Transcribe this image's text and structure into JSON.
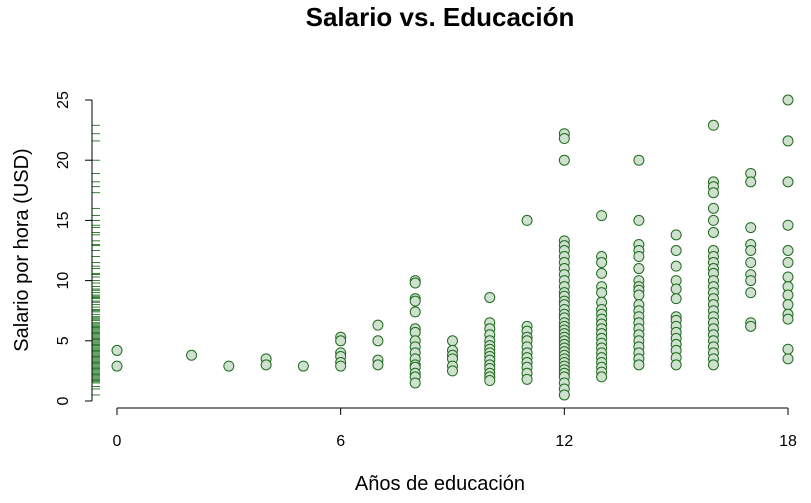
{
  "chart_data": {
    "type": "scatter",
    "title": "Salario vs. Educación",
    "xlabel": "Años de educación",
    "ylabel": "Salario por hora (USD)",
    "xlim": [
      0,
      18
    ],
    "ylim": [
      0,
      25
    ],
    "xticks": [
      0,
      6,
      12,
      18
    ],
    "yticks": [
      0,
      5,
      10,
      15,
      20,
      25
    ],
    "x_tick_labels": [
      "0",
      "6",
      "12",
      "18"
    ],
    "y_tick_labels": [
      "0",
      "5",
      "10",
      "15",
      "20",
      "25"
    ],
    "grid": false,
    "rug": "y-axis",
    "colors": {
      "point_fill": "#cfe0cf",
      "point_stroke": "#1f6b1f",
      "rug": "#006400"
    },
    "points": [
      [
        0,
        4.2
      ],
      [
        0,
        2.9
      ],
      [
        2,
        3.8
      ],
      [
        3,
        2.9
      ],
      [
        4,
        3.5
      ],
      [
        4,
        3.0
      ],
      [
        5,
        2.9
      ],
      [
        6,
        5.3
      ],
      [
        6,
        5.0
      ],
      [
        6,
        4.0
      ],
      [
        6,
        3.7
      ],
      [
        6,
        3.2
      ],
      [
        6,
        2.9
      ],
      [
        7,
        6.3
      ],
      [
        7,
        5.0
      ],
      [
        7,
        3.4
      ],
      [
        7,
        3.0
      ],
      [
        8,
        10.0
      ],
      [
        8,
        9.8
      ],
      [
        8,
        8.5
      ],
      [
        8,
        8.3
      ],
      [
        8,
        7.4
      ],
      [
        8,
        6.0
      ],
      [
        8,
        5.7
      ],
      [
        8,
        5.0
      ],
      [
        8,
        4.5
      ],
      [
        8,
        4.0
      ],
      [
        8,
        3.5
      ],
      [
        8,
        3.0
      ],
      [
        8,
        2.8
      ],
      [
        8,
        2.3
      ],
      [
        8,
        2.0
      ],
      [
        8,
        1.5
      ],
      [
        9,
        5.0
      ],
      [
        9,
        4.2
      ],
      [
        9,
        3.8
      ],
      [
        9,
        3.5
      ],
      [
        9,
        2.9
      ],
      [
        9,
        2.5
      ],
      [
        10,
        8.6
      ],
      [
        10,
        6.5
      ],
      [
        10,
        6.0
      ],
      [
        10,
        5.5
      ],
      [
        10,
        5.0
      ],
      [
        10,
        4.6
      ],
      [
        10,
        4.3
      ],
      [
        10,
        4.0
      ],
      [
        10,
        3.7
      ],
      [
        10,
        3.4
      ],
      [
        10,
        3.0
      ],
      [
        10,
        2.7
      ],
      [
        10,
        2.3
      ],
      [
        10,
        2.0
      ],
      [
        10,
        1.7
      ],
      [
        11,
        15.0
      ],
      [
        11,
        6.2
      ],
      [
        11,
        5.8
      ],
      [
        11,
        5.3
      ],
      [
        11,
        5.0
      ],
      [
        11,
        4.5
      ],
      [
        11,
        4.0
      ],
      [
        11,
        3.6
      ],
      [
        11,
        3.2
      ],
      [
        11,
        2.8
      ],
      [
        11,
        2.3
      ],
      [
        11,
        1.8
      ],
      [
        12,
        22.2
      ],
      [
        12,
        21.8
      ],
      [
        12,
        20.0
      ],
      [
        12,
        13.3
      ],
      [
        12,
        12.9
      ],
      [
        12,
        12.5
      ],
      [
        12,
        12.0
      ],
      [
        12,
        11.5
      ],
      [
        12,
        11.0
      ],
      [
        12,
        10.5
      ],
      [
        12,
        10.0
      ],
      [
        12,
        9.5
      ],
      [
        12,
        9.0
      ],
      [
        12,
        8.7
      ],
      [
        12,
        8.3
      ],
      [
        12,
        8.0
      ],
      [
        12,
        7.6
      ],
      [
        12,
        7.2
      ],
      [
        12,
        6.9
      ],
      [
        12,
        6.5
      ],
      [
        12,
        6.2
      ],
      [
        12,
        5.9
      ],
      [
        12,
        5.6
      ],
      [
        12,
        5.3
      ],
      [
        12,
        5.0
      ],
      [
        12,
        4.7
      ],
      [
        12,
        4.4
      ],
      [
        12,
        4.1
      ],
      [
        12,
        3.8
      ],
      [
        12,
        3.5
      ],
      [
        12,
        3.2
      ],
      [
        12,
        2.9
      ],
      [
        12,
        2.6
      ],
      [
        12,
        2.3
      ],
      [
        12,
        2.0
      ],
      [
        12,
        1.5
      ],
      [
        12,
        1.0
      ],
      [
        12,
        0.5
      ],
      [
        13,
        15.4
      ],
      [
        13,
        12.0
      ],
      [
        13,
        11.5
      ],
      [
        13,
        10.6
      ],
      [
        13,
        9.5
      ],
      [
        13,
        9.0
      ],
      [
        13,
        8.2
      ],
      [
        13,
        7.6
      ],
      [
        13,
        7.2
      ],
      [
        13,
        6.8
      ],
      [
        13,
        6.4
      ],
      [
        13,
        6.0
      ],
      [
        13,
        5.6
      ],
      [
        13,
        5.2
      ],
      [
        13,
        4.8
      ],
      [
        13,
        4.4
      ],
      [
        13,
        4.0
      ],
      [
        13,
        3.6
      ],
      [
        13,
        3.2
      ],
      [
        13,
        2.8
      ],
      [
        13,
        2.4
      ],
      [
        13,
        2.0
      ],
      [
        14,
        20.0
      ],
      [
        14,
        15.0
      ],
      [
        14,
        13.0
      ],
      [
        14,
        12.5
      ],
      [
        14,
        12.0
      ],
      [
        14,
        11.0
      ],
      [
        14,
        10.0
      ],
      [
        14,
        9.5
      ],
      [
        14,
        9.2
      ],
      [
        14,
        8.8
      ],
      [
        14,
        8.0
      ],
      [
        14,
        7.5
      ],
      [
        14,
        7.0
      ],
      [
        14,
        6.5
      ],
      [
        14,
        6.0
      ],
      [
        14,
        5.5
      ],
      [
        14,
        5.0
      ],
      [
        14,
        4.5
      ],
      [
        14,
        4.0
      ],
      [
        14,
        3.5
      ],
      [
        14,
        3.0
      ],
      [
        15,
        13.8
      ],
      [
        15,
        12.5
      ],
      [
        15,
        11.2
      ],
      [
        15,
        10.0
      ],
      [
        15,
        9.3
      ],
      [
        15,
        8.5
      ],
      [
        15,
        7.0
      ],
      [
        15,
        6.7
      ],
      [
        15,
        6.2
      ],
      [
        15,
        5.7
      ],
      [
        15,
        5.2
      ],
      [
        15,
        4.7
      ],
      [
        15,
        4.2
      ],
      [
        15,
        3.6
      ],
      [
        15,
        3.0
      ],
      [
        16,
        22.9
      ],
      [
        16,
        18.2
      ],
      [
        16,
        17.8
      ],
      [
        16,
        17.3
      ],
      [
        16,
        16.0
      ],
      [
        16,
        15.0
      ],
      [
        16,
        14.0
      ],
      [
        16,
        12.5
      ],
      [
        16,
        12.0
      ],
      [
        16,
        11.5
      ],
      [
        16,
        11.0
      ],
      [
        16,
        10.6
      ],
      [
        16,
        10.0
      ],
      [
        16,
        9.5
      ],
      [
        16,
        9.0
      ],
      [
        16,
        8.5
      ],
      [
        16,
        8.0
      ],
      [
        16,
        7.5
      ],
      [
        16,
        7.0
      ],
      [
        16,
        6.5
      ],
      [
        16,
        6.0
      ],
      [
        16,
        5.5
      ],
      [
        16,
        5.0
      ],
      [
        16,
        4.5
      ],
      [
        16,
        4.0
      ],
      [
        16,
        3.5
      ],
      [
        16,
        3.0
      ],
      [
        17,
        18.9
      ],
      [
        17,
        18.2
      ],
      [
        17,
        14.4
      ],
      [
        17,
        13.0
      ],
      [
        17,
        12.5
      ],
      [
        17,
        11.5
      ],
      [
        17,
        10.5
      ],
      [
        17,
        10.0
      ],
      [
        17,
        9.0
      ],
      [
        17,
        6.5
      ],
      [
        17,
        6.2
      ],
      [
        18,
        25.0
      ],
      [
        18,
        21.6
      ],
      [
        18,
        18.2
      ],
      [
        18,
        14.6
      ],
      [
        18,
        12.5
      ],
      [
        18,
        11.5
      ],
      [
        18,
        10.3
      ],
      [
        18,
        9.5
      ],
      [
        18,
        8.8
      ],
      [
        18,
        8.0
      ],
      [
        18,
        7.2
      ],
      [
        18,
        6.8
      ],
      [
        18,
        4.3
      ],
      [
        18,
        3.5
      ]
    ],
    "rug_values": [
      22.9,
      22.2,
      21.6,
      20.0,
      18.9,
      18.2,
      17.8,
      17.3,
      16.0,
      15.4,
      15.0,
      14.6,
      14.4,
      14.0,
      13.8,
      13.3,
      13.0,
      12.9,
      12.5,
      12.0,
      11.5,
      11.2,
      11.0,
      10.6,
      10.5,
      10.3,
      10.0,
      9.8,
      9.5,
      9.3,
      9.2,
      9.0,
      8.8,
      8.7,
      8.6,
      8.5,
      8.3,
      8.2,
      8.0,
      7.8,
      7.6,
      7.5,
      7.4,
      7.2,
      7.0,
      6.9,
      6.8,
      6.7,
      6.5,
      6.4,
      6.3,
      6.2,
      6.1,
      6.0,
      5.9,
      5.8,
      5.7,
      5.6,
      5.5,
      5.4,
      5.3,
      5.2,
      5.1,
      5.0,
      4.9,
      4.8,
      4.7,
      4.6,
      4.5,
      4.4,
      4.3,
      4.2,
      4.1,
      4.0,
      3.9,
      3.8,
      3.7,
      3.6,
      3.5,
      3.4,
      3.3,
      3.2,
      3.1,
      3.0,
      2.9,
      2.8,
      2.7,
      2.6,
      2.5,
      2.4,
      2.3,
      2.2,
      2.1,
      2.0,
      1.9,
      1.8,
      1.7,
      1.6,
      1.5,
      1.2,
      1.0,
      0.5
    ]
  }
}
